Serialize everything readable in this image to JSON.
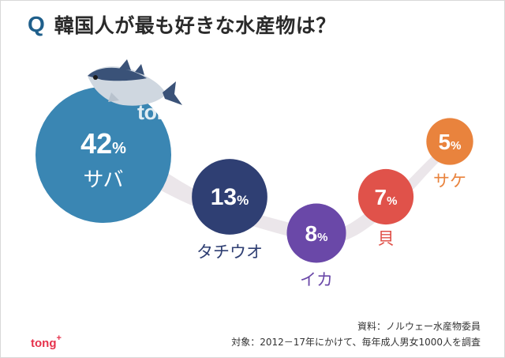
{
  "title": {
    "q": "Q",
    "text": "韓国人が最も好きな水産物は？"
  },
  "chart_data": {
    "type": "bubble",
    "unit": "%",
    "categories": [
      "サバ",
      "タチウオ",
      "イカ",
      "貝",
      "サケ"
    ],
    "values": [
      42,
      13,
      8,
      7,
      5
    ],
    "colors": [
      "#3a86b3",
      "#2f3f73",
      "#6a48a8",
      "#e0524a",
      "#e9833d"
    ]
  },
  "watermark": {
    "text": "tong",
    "sup": "+"
  },
  "source": {
    "line1": "資料：ノルウェー水産物委員",
    "line2": "対象：2012－17年にかけて、毎年成人男女1000人を調査"
  },
  "logo": {
    "text": "tong",
    "sup": "+"
  }
}
